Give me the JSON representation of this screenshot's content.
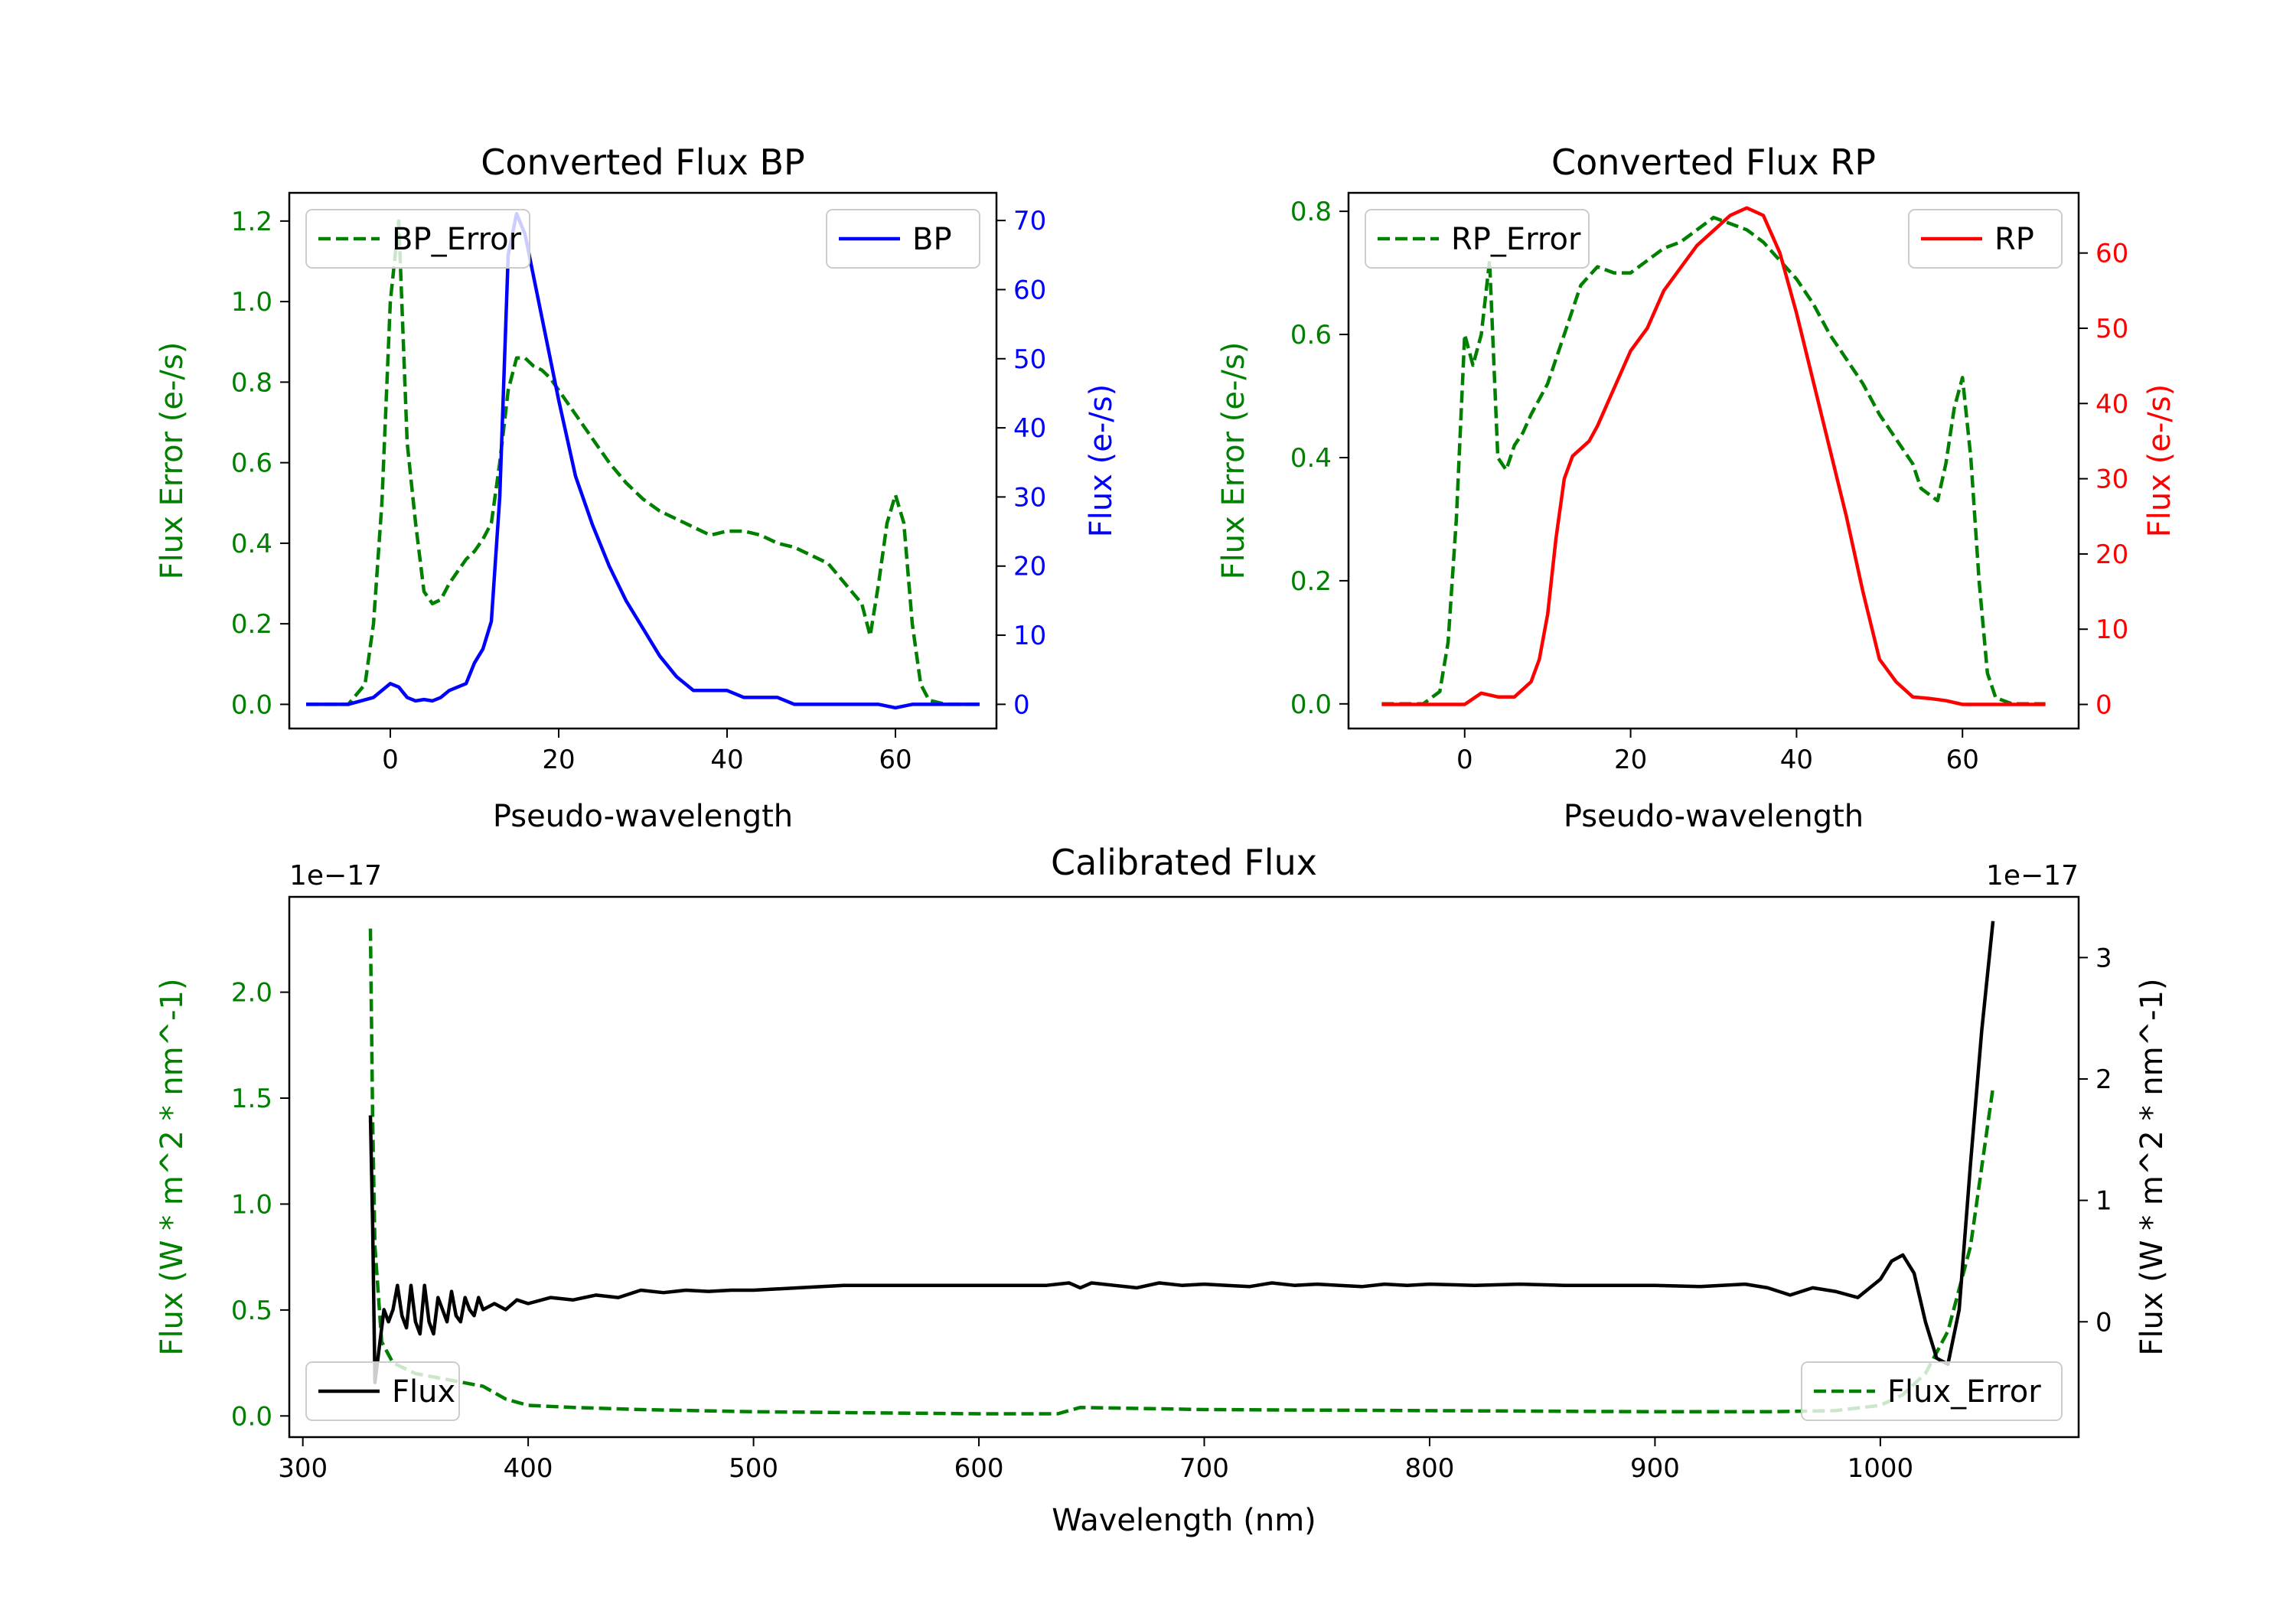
{
  "chart_data": [
    {
      "type": "line",
      "title": "Converted Flux BP",
      "xlabel": "Pseudo-wavelength",
      "ylabel_left": "Flux Error (e-/s)",
      "ylabel_right": "Flux (e-/s)",
      "xlim": [
        -12,
        72
      ],
      "ylim_left": [
        -0.06,
        1.27
      ],
      "ylim_right": [
        -3.5,
        74
      ],
      "x_ticks": [
        0,
        20,
        40,
        60
      ],
      "y_left_ticks": [
        "0.0",
        "0.2",
        "0.4",
        "0.6",
        "0.8",
        "1.0",
        "1.2"
      ],
      "y_right_ticks": [
        "0",
        "10",
        "20",
        "30",
        "40",
        "50",
        "60",
        "70"
      ],
      "legend_left": {
        "label": "BP_Error",
        "position": "upper-left"
      },
      "legend_right": {
        "label": "BP",
        "position": "upper-right"
      },
      "colors": {
        "error": "#008000",
        "flux": "#0000ff",
        "axis_left": "#008000",
        "axis_right": "#0000ff"
      },
      "series": [
        {
          "name": "BP_Error",
          "axis": "left",
          "style": "dashed",
          "x": [
            -10,
            -5,
            -3,
            -2,
            -1,
            0,
            1,
            2,
            3,
            4,
            5,
            6,
            7,
            8,
            9,
            10,
            11,
            12,
            13,
            14,
            15,
            16,
            17,
            18,
            19,
            20,
            22,
            24,
            26,
            28,
            30,
            32,
            34,
            36,
            38,
            40,
            42,
            44,
            46,
            48,
            50,
            52,
            54,
            56,
            57,
            58,
            59,
            60,
            61,
            62,
            63,
            64,
            66,
            70
          ],
          "y": [
            0,
            0,
            0.05,
            0.2,
            0.5,
            1.0,
            1.2,
            0.65,
            0.45,
            0.28,
            0.25,
            0.26,
            0.3,
            0.33,
            0.36,
            0.38,
            0.41,
            0.45,
            0.6,
            0.78,
            0.86,
            0.86,
            0.84,
            0.83,
            0.81,
            0.78,
            0.72,
            0.66,
            0.6,
            0.55,
            0.51,
            0.48,
            0.46,
            0.44,
            0.42,
            0.43,
            0.43,
            0.42,
            0.4,
            0.39,
            0.37,
            0.35,
            0.3,
            0.25,
            0.17,
            0.3,
            0.45,
            0.52,
            0.45,
            0.2,
            0.05,
            0.01,
            0,
            0
          ]
        },
        {
          "name": "BP",
          "axis": "right",
          "style": "solid",
          "x": [
            -10,
            -5,
            -2,
            0,
            1,
            2,
            3,
            4,
            5,
            6,
            7,
            8,
            9,
            10,
            11,
            12,
            13,
            14,
            15,
            16,
            17,
            18,
            19,
            20,
            22,
            24,
            26,
            28,
            30,
            32,
            34,
            36,
            38,
            40,
            42,
            44,
            46,
            48,
            50,
            52,
            54,
            56,
            58,
            60,
            62,
            64,
            66,
            70
          ],
          "y": [
            0,
            0,
            1,
            3,
            2.5,
            1,
            0.5,
            0.7,
            0.5,
            1,
            2,
            2.5,
            3,
            6,
            8,
            12,
            30,
            65,
            71,
            68,
            62,
            56,
            50,
            44,
            33,
            26,
            20,
            15,
            11,
            7,
            4,
            2,
            2,
            2,
            1,
            1,
            1,
            0,
            0,
            0,
            0,
            0,
            0,
            -0.5,
            0,
            0,
            0,
            0
          ]
        }
      ]
    },
    {
      "type": "line",
      "title": "Converted Flux RP",
      "xlabel": "Pseudo-wavelength",
      "ylabel_left": "Flux Error (e-/s)",
      "ylabel_right": "Flux (e-/s)",
      "xlim": [
        -14,
        74
      ],
      "ylim_left": [
        -0.04,
        0.83
      ],
      "ylim_right": [
        -3.2,
        68
      ],
      "x_ticks": [
        0,
        20,
        40,
        60
      ],
      "y_left_ticks": [
        "0.0",
        "0.2",
        "0.4",
        "0.6",
        "0.8"
      ],
      "y_right_ticks": [
        "0",
        "10",
        "20",
        "30",
        "40",
        "50",
        "60"
      ],
      "legend_left": {
        "label": "RP_Error",
        "position": "upper-left"
      },
      "legend_right": {
        "label": "RP",
        "position": "upper-right"
      },
      "colors": {
        "error": "#008000",
        "flux": "#ff0000",
        "axis_left": "#008000",
        "axis_right": "#ff0000"
      },
      "series": [
        {
          "name": "RP_Error",
          "axis": "left",
          "style": "dashed",
          "x": [
            -10,
            -5,
            -3,
            -2,
            -1,
            0,
            1,
            2,
            3,
            4,
            5,
            6,
            7,
            8,
            10,
            12,
            14,
            16,
            18,
            20,
            22,
            24,
            26,
            28,
            30,
            32,
            34,
            36,
            38,
            40,
            42,
            44,
            46,
            48,
            50,
            52,
            54,
            55,
            56,
            57,
            58,
            59,
            60,
            61,
            62,
            63,
            64,
            66,
            70
          ],
          "y": [
            0,
            0,
            0.02,
            0.1,
            0.3,
            0.6,
            0.55,
            0.6,
            0.72,
            0.4,
            0.38,
            0.42,
            0.44,
            0.47,
            0.52,
            0.6,
            0.68,
            0.71,
            0.7,
            0.7,
            0.72,
            0.74,
            0.75,
            0.77,
            0.79,
            0.78,
            0.77,
            0.75,
            0.72,
            0.69,
            0.65,
            0.6,
            0.56,
            0.52,
            0.47,
            0.43,
            0.39,
            0.35,
            0.34,
            0.33,
            0.39,
            0.48,
            0.53,
            0.4,
            0.2,
            0.05,
            0.01,
            0,
            0
          ]
        },
        {
          "name": "RP",
          "axis": "right",
          "style": "solid",
          "x": [
            -10,
            -5,
            -2,
            0,
            2,
            4,
            6,
            8,
            9,
            10,
            11,
            12,
            13,
            14,
            15,
            16,
            18,
            20,
            22,
            24,
            26,
            28,
            30,
            32,
            34,
            36,
            38,
            40,
            42,
            44,
            46,
            48,
            50,
            52,
            54,
            56,
            58,
            60,
            62,
            65,
            70
          ],
          "y": [
            0,
            0,
            0,
            0,
            1.5,
            1,
            1,
            3,
            6,
            12,
            22,
            30,
            33,
            34,
            35,
            37,
            42,
            47,
            50,
            55,
            58,
            61,
            63,
            65,
            66,
            65,
            60,
            52,
            43,
            34,
            25,
            15,
            6,
            3,
            1,
            0.8,
            0.5,
            0,
            0,
            0,
            0
          ]
        }
      ]
    },
    {
      "type": "line",
      "title": "Calibrated Flux",
      "xlabel": "Wavelength (nm)",
      "ylabel_left": "Flux (W * m^2 * nm^-1)",
      "ylabel_right": "Flux (W * m^2 * nm^-1)",
      "xlim": [
        294,
        1088
      ],
      "ylim_left": [
        -0.1,
        2.45
      ],
      "ylim_right": [
        -0.95,
        3.5
      ],
      "x_ticks": [
        "300",
        "400",
        "500",
        "600",
        "700",
        "800",
        "900",
        "1000"
      ],
      "y_left_ticks": [
        "0.0",
        "0.5",
        "1.0",
        "1.5",
        "2.0"
      ],
      "y_right_ticks": [
        "0",
        "1",
        "2",
        "3"
      ],
      "offset_left": "1e−17",
      "offset_right": "1e−17",
      "legend_left": {
        "label": "Flux",
        "position": "lower-left"
      },
      "legend_right": {
        "label": "Flux_Error",
        "position": "lower-right"
      },
      "colors": {
        "error": "#008000",
        "flux": "#000000",
        "axis_left": "#008000",
        "axis_right": "#000000"
      },
      "series": [
        {
          "name": "Flux_Error",
          "axis": "left",
          "style": "dashed",
          "x": [
            330,
            331,
            332,
            335,
            340,
            350,
            360,
            370,
            380,
            390,
            400,
            420,
            450,
            500,
            550,
            600,
            635,
            645,
            700,
            800,
            900,
            950,
            980,
            1000,
            1010,
            1020,
            1030,
            1040,
            1050
          ],
          "y": [
            2.3,
            1.4,
            0.8,
            0.35,
            0.25,
            0.2,
            0.18,
            0.16,
            0.14,
            0.08,
            0.05,
            0.04,
            0.03,
            0.02,
            0.015,
            0.01,
            0.01,
            0.04,
            0.03,
            0.025,
            0.02,
            0.02,
            0.025,
            0.05,
            0.1,
            0.2,
            0.4,
            0.8,
            1.55
          ]
        },
        {
          "name": "Flux",
          "axis": "right",
          "style": "solid",
          "x": [
            330,
            331,
            332,
            334,
            336,
            338,
            340,
            342,
            344,
            346,
            348,
            350,
            352,
            354,
            356,
            358,
            360,
            362,
            364,
            366,
            368,
            370,
            372,
            374,
            376,
            378,
            380,
            385,
            390,
            395,
            400,
            410,
            420,
            430,
            440,
            450,
            460,
            470,
            480,
            490,
            500,
            520,
            540,
            550,
            560,
            580,
            600,
            620,
            630,
            640,
            645,
            650,
            660,
            670,
            680,
            690,
            700,
            710,
            720,
            730,
            740,
            750,
            760,
            770,
            780,
            790,
            800,
            820,
            840,
            860,
            880,
            900,
            920,
            940,
            950,
            960,
            970,
            980,
            990,
            1000,
            1005,
            1010,
            1015,
            1020,
            1025,
            1030,
            1035,
            1040,
            1045,
            1050
          ],
          "y": [
            1.7,
            0.8,
            -0.5,
            -0.2,
            0.1,
            0.0,
            0.1,
            0.3,
            0.05,
            -0.05,
            0.3,
            0.0,
            -0.1,
            0.3,
            0.0,
            -0.1,
            0.2,
            0.1,
            0.0,
            0.25,
            0.05,
            0.0,
            0.2,
            0.1,
            0.05,
            0.2,
            0.1,
            0.15,
            0.1,
            0.18,
            0.15,
            0.2,
            0.18,
            0.22,
            0.2,
            0.26,
            0.24,
            0.26,
            0.25,
            0.26,
            0.26,
            0.28,
            0.3,
            0.3,
            0.3,
            0.3,
            0.3,
            0.3,
            0.3,
            0.32,
            0.28,
            0.32,
            0.3,
            0.28,
            0.32,
            0.3,
            0.31,
            0.3,
            0.29,
            0.32,
            0.3,
            0.31,
            0.3,
            0.29,
            0.31,
            0.3,
            0.31,
            0.3,
            0.31,
            0.3,
            0.3,
            0.3,
            0.29,
            0.31,
            0.28,
            0.22,
            0.28,
            0.25,
            0.2,
            0.35,
            0.5,
            0.55,
            0.4,
            0.0,
            -0.3,
            -0.35,
            0.1,
            1.3,
            2.4,
            3.3
          ]
        }
      ]
    }
  ]
}
